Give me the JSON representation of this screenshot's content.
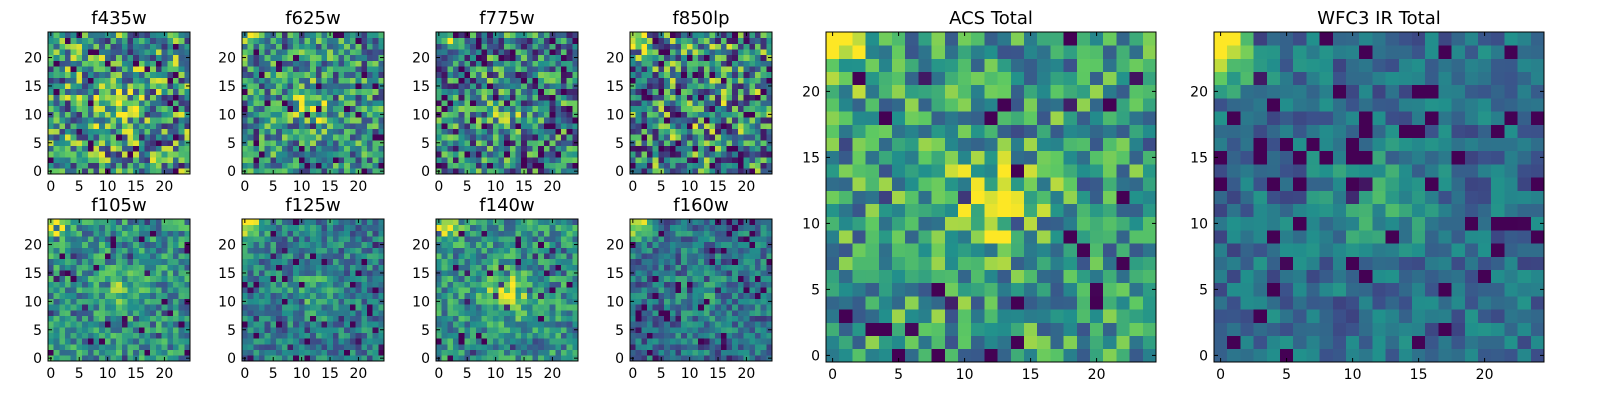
{
  "figure": {
    "colormap": "viridis",
    "colormap_stops": [
      "#440154",
      "#3b528b",
      "#21918c",
      "#5ec962",
      "#fde725"
    ]
  },
  "chart_data": [
    {
      "type": "heatmap",
      "title": "f435w",
      "grid_size": [
        25,
        25
      ],
      "x_ticks": [
        "0",
        "5",
        "10",
        "15",
        "20"
      ],
      "y_ticks": [
        "0",
        "5",
        "10",
        "15",
        "20"
      ],
      "xlim": [
        -0.5,
        24.5
      ],
      "ylim": [
        -0.5,
        24.5
      ],
      "y_origin": "lower",
      "features": {
        "noise": 0.42,
        "center": 0.18,
        "corner_glow": 0.05,
        "dark_spots": 0.1,
        "base": 0.55
      }
    },
    {
      "type": "heatmap",
      "title": "f625w",
      "grid_size": [
        25,
        25
      ],
      "x_ticks": [
        "0",
        "5",
        "10",
        "15",
        "20"
      ],
      "y_ticks": [
        "0",
        "5",
        "10",
        "15",
        "20"
      ],
      "xlim": [
        -0.5,
        24.5
      ],
      "ylim": [
        -0.5,
        24.5
      ],
      "y_origin": "lower",
      "features": {
        "noise": 0.35,
        "center": 0.3,
        "corner_glow": 0.25,
        "dark_spots": 0.1,
        "base": 0.5
      }
    },
    {
      "type": "heatmap",
      "title": "f775w",
      "grid_size": [
        25,
        25
      ],
      "x_ticks": [
        "0",
        "5",
        "10",
        "15",
        "20"
      ],
      "y_ticks": [
        "0",
        "5",
        "10",
        "15",
        "20"
      ],
      "xlim": [
        -0.5,
        24.5
      ],
      "ylim": [
        -0.5,
        24.5
      ],
      "y_origin": "lower",
      "features": {
        "noise": 0.4,
        "center": 0.2,
        "corner_glow": 0.4,
        "dark_spots": 0.12,
        "base": 0.45
      }
    },
    {
      "type": "heatmap",
      "title": "f850lp",
      "grid_size": [
        25,
        25
      ],
      "x_ticks": [
        "0",
        "5",
        "10",
        "15",
        "20"
      ],
      "y_ticks": [
        "0",
        "5",
        "10",
        "15",
        "20"
      ],
      "xlim": [
        -0.5,
        24.5
      ],
      "ylim": [
        -0.5,
        24.5
      ],
      "y_origin": "lower",
      "features": {
        "noise": 0.45,
        "center": 0.1,
        "corner_glow": 0.4,
        "dark_spots": 0.12,
        "base": 0.5
      }
    },
    {
      "type": "heatmap",
      "title": "f105w",
      "grid_size": [
        25,
        25
      ],
      "x_ticks": [
        "0",
        "5",
        "10",
        "15",
        "20"
      ],
      "y_ticks": [
        "0",
        "5",
        "10",
        "15",
        "20"
      ],
      "xlim": [
        -0.5,
        24.5
      ],
      "ylim": [
        -0.5,
        24.5
      ],
      "y_origin": "lower",
      "features": {
        "noise": 0.25,
        "center": 0.25,
        "corner_glow": 0.5,
        "dark_spots": 0.08,
        "base": 0.5
      }
    },
    {
      "type": "heatmap",
      "title": "f125w",
      "grid_size": [
        25,
        25
      ],
      "x_ticks": [
        "0",
        "5",
        "10",
        "15",
        "20"
      ],
      "y_ticks": [
        "0",
        "5",
        "10",
        "15",
        "20"
      ],
      "xlim": [
        -0.5,
        24.5
      ],
      "ylim": [
        -0.5,
        24.5
      ],
      "y_origin": "lower",
      "features": {
        "noise": 0.22,
        "center": 0.2,
        "corner_glow": 0.55,
        "dark_spots": 0.08,
        "base": 0.42
      }
    },
    {
      "type": "heatmap",
      "title": "f140w",
      "grid_size": [
        25,
        25
      ],
      "x_ticks": [
        "0",
        "5",
        "10",
        "15",
        "20"
      ],
      "y_ticks": [
        "0",
        "5",
        "10",
        "15",
        "20"
      ],
      "xlim": [
        -0.5,
        24.5
      ],
      "ylim": [
        -0.5,
        24.5
      ],
      "y_origin": "lower",
      "features": {
        "noise": 0.25,
        "center": 0.35,
        "corner_glow": 0.55,
        "dark_spots": 0.06,
        "base": 0.5
      }
    },
    {
      "type": "heatmap",
      "title": "f160w",
      "grid_size": [
        25,
        25
      ],
      "x_ticks": [
        "0",
        "5",
        "10",
        "15",
        "20"
      ],
      "y_ticks": [
        "0",
        "5",
        "10",
        "15",
        "20"
      ],
      "xlim": [
        -0.5,
        24.5
      ],
      "ylim": [
        -0.5,
        24.5
      ],
      "y_origin": "lower",
      "features": {
        "noise": 0.22,
        "center": 0.15,
        "corner_glow": 0.6,
        "dark_spots": 0.08,
        "base": 0.38
      }
    },
    {
      "type": "heatmap",
      "title": "ACS Total",
      "grid_size": [
        25,
        25
      ],
      "x_ticks": [
        "0",
        "5",
        "10",
        "15",
        "20"
      ],
      "y_ticks": [
        "0",
        "5",
        "10",
        "15",
        "20"
      ],
      "xlim": [
        -0.5,
        24.5
      ],
      "ylim": [
        -0.5,
        24.5
      ],
      "y_origin": "lower",
      "features": {
        "noise": 0.3,
        "center": 0.3,
        "corner_glow": 0.55,
        "dark_spots": 0.08,
        "base": 0.55
      }
    },
    {
      "type": "heatmap",
      "title": "WFC3 IR Total",
      "grid_size": [
        25,
        25
      ],
      "x_ticks": [
        "0",
        "5",
        "10",
        "15",
        "20"
      ],
      "y_ticks": [
        "0",
        "5",
        "10",
        "15",
        "20"
      ],
      "xlim": [
        -0.5,
        24.5
      ],
      "ylim": [
        -0.5,
        24.5
      ],
      "y_origin": "lower",
      "features": {
        "noise": 0.16,
        "center": 0.22,
        "corner_glow": 0.75,
        "dark_spots": 0.1,
        "base": 0.36
      }
    }
  ]
}
